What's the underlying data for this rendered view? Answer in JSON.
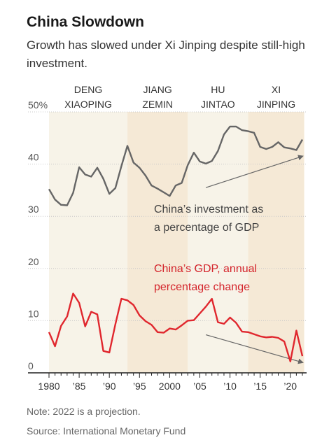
{
  "title": "China Slowdown",
  "subtitle": "Growth has slowed under Xi Jinping despite still-high investment.",
  "note": "Note: 2022 is a projection.",
  "source": "Source: International Monetary Fund",
  "chart_data": {
    "type": "line",
    "xlim": [
      1980,
      2022
    ],
    "ylim": [
      0,
      50
    ],
    "x_ticks": [
      {
        "year": 1980,
        "label": "1980"
      },
      {
        "year": 1985,
        "label": "’85"
      },
      {
        "year": 1990,
        "label": "’90"
      },
      {
        "year": 1995,
        "label": "’95"
      },
      {
        "year": 2000,
        "label": "2000"
      },
      {
        "year": 2005,
        "label": "’05"
      },
      {
        "year": 2010,
        "label": "’10"
      },
      {
        "year": 2015,
        "label": "’15"
      },
      {
        "year": 2020,
        "label": "’20"
      }
    ],
    "y_ticks": [
      {
        "value": 50,
        "label": "50%"
      },
      {
        "value": 40,
        "label": "40"
      },
      {
        "value": 30,
        "label": "30"
      },
      {
        "value": 20,
        "label": "20"
      },
      {
        "value": 10,
        "label": "10"
      },
      {
        "value": 0,
        "label": "0"
      }
    ],
    "eras": [
      {
        "line1": "DENG",
        "line2": "XIAOPING",
        "start": 1980,
        "end": 1993,
        "color": "#f7f3e8"
      },
      {
        "line1": "JIANG",
        "line2": "ZEMIN",
        "start": 1993,
        "end": 2003,
        "color": "#f5e9d6"
      },
      {
        "line1": "HU",
        "line2": "JINTAO",
        "start": 2003,
        "end": 2013,
        "color": "#f7f3e8"
      },
      {
        "line1": "XI",
        "line2": "JINPING",
        "start": 2013,
        "end": 2022.3,
        "color": "#f5e9d6"
      }
    ],
    "series": [
      {
        "name": "China's investment as a percentage of GDP",
        "label_line1": "China’s investment as",
        "label_line2": "a percentage of GDP",
        "color": "#666666",
        "label_color": "#444444",
        "x": [
          1980,
          1981,
          1982,
          1983,
          1984,
          1985,
          1986,
          1987,
          1988,
          1989,
          1990,
          1991,
          1992,
          1993,
          1994,
          1995,
          1996,
          1997,
          1998,
          1999,
          2000,
          2001,
          2002,
          2003,
          2004,
          2005,
          2006,
          2007,
          2008,
          2009,
          2010,
          2011,
          2012,
          2013,
          2014,
          2015,
          2016,
          2017,
          2018,
          2019,
          2020,
          2021,
          2022
        ],
        "y": [
          35.2,
          33.2,
          32.2,
          32.1,
          34.5,
          39.4,
          38.0,
          37.6,
          39.3,
          37.2,
          34.3,
          35.4,
          39.6,
          43.5,
          40.3,
          39.3,
          37.8,
          35.9,
          35.3,
          34.6,
          33.9,
          35.9,
          36.4,
          39.8,
          42.2,
          40.5,
          40.1,
          40.6,
          42.5,
          45.7,
          47.2,
          47.2,
          46.5,
          46.3,
          46.0,
          43.3,
          42.9,
          43.3,
          44.2,
          43.2,
          43.0,
          42.7,
          44.7
        ]
      },
      {
        "name": "China's GDP, annual percentage change",
        "label_line1": "China’s GDP, annual",
        "label_line2": "percentage change",
        "color": "#e0272e",
        "label_color": "#d4242b",
        "x": [
          1980,
          1981,
          1982,
          1983,
          1984,
          1985,
          1986,
          1987,
          1988,
          1989,
          1990,
          1991,
          1992,
          1993,
          1994,
          1995,
          1996,
          1997,
          1998,
          1999,
          2000,
          2001,
          2002,
          2003,
          2004,
          2005,
          2006,
          2007,
          2008,
          2009,
          2010,
          2011,
          2012,
          2013,
          2014,
          2015,
          2016,
          2017,
          2018,
          2019,
          2020,
          2021,
          2022
        ],
        "y": [
          7.8,
          5.1,
          9.0,
          10.8,
          15.2,
          13.4,
          8.9,
          11.7,
          11.2,
          4.2,
          3.9,
          9.3,
          14.2,
          13.9,
          13.0,
          11.0,
          9.9,
          9.2,
          7.8,
          7.7,
          8.5,
          8.3,
          9.1,
          10.0,
          10.1,
          11.4,
          12.7,
          14.2,
          9.7,
          9.4,
          10.6,
          9.6,
          7.9,
          7.8,
          7.4,
          7.0,
          6.8,
          6.9,
          6.7,
          6.0,
          2.2,
          8.1,
          3.2
        ]
      }
    ],
    "trend_arrows": [
      {
        "color": "#666666",
        "from": [
          2006,
          35.5
        ],
        "to": [
          2022,
          41.5
        ]
      },
      {
        "color": "#666666",
        "from": [
          2006,
          7.3
        ],
        "to": [
          2022,
          2.0
        ]
      }
    ]
  }
}
